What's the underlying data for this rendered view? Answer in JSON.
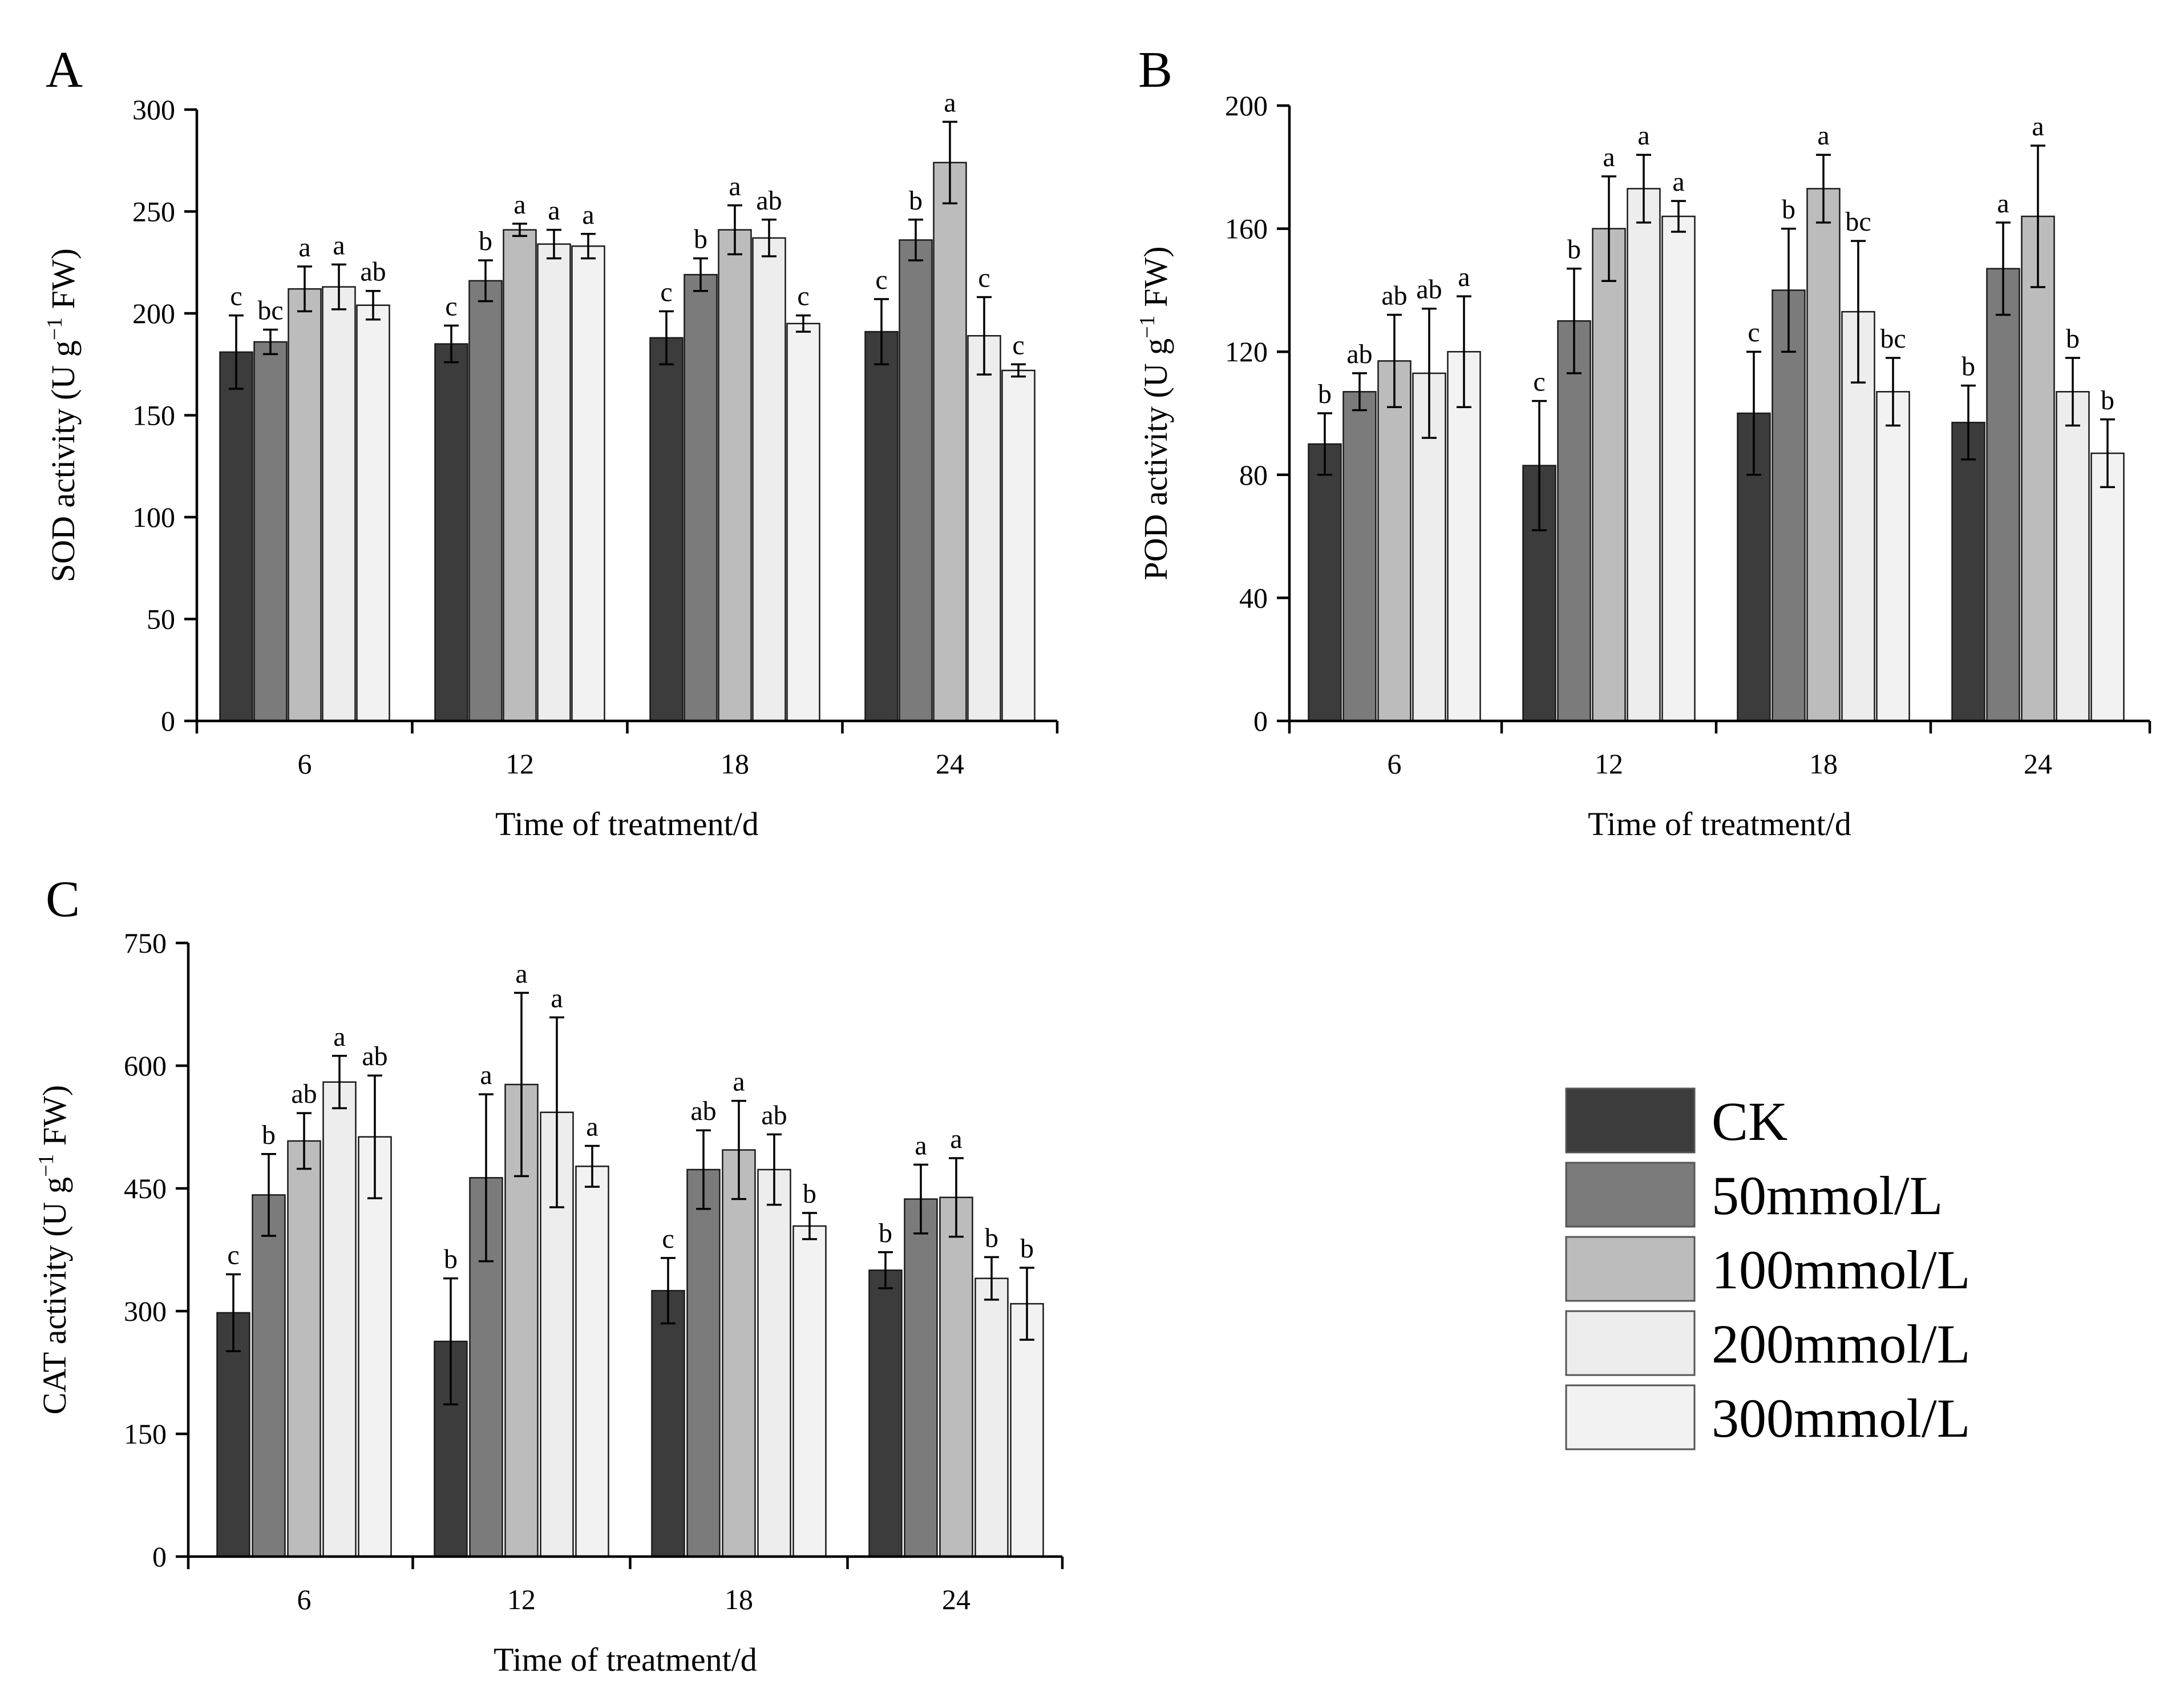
{
  "series_style": [
    {
      "name": "CK",
      "color": "#3c3c3c"
    },
    {
      "name": "50mmol/L",
      "color": "#7b7b7b"
    },
    {
      "name": "100mmol/L",
      "color": "#bcbcbc"
    },
    {
      "name": "200mmol/L",
      "color": "#ededed"
    },
    {
      "name": "300mmol/L",
      "color": "#f2f2f2"
    }
  ],
  "legend": {
    "items": [
      "CK",
      "50mmol/L",
      "100mmol/L",
      "200mmol/L",
      "300mmol/L"
    ]
  },
  "chart_data": [
    {
      "panel": "A",
      "type": "bar",
      "xlabel": "Time of treatment/d",
      "ylabel_main": "SOD activity (U g",
      "ylabel_sup": "−1",
      "ylabel_tail": " FW)",
      "ylim": [
        0,
        300
      ],
      "yticks": [
        0,
        50,
        100,
        150,
        200,
        250,
        300
      ],
      "categories": [
        "6",
        "12",
        "18",
        "24"
      ],
      "series": [
        {
          "name": "CK",
          "values": [
            181,
            185,
            188,
            191
          ],
          "errors": [
            18,
            9,
            13,
            16
          ],
          "letters": [
            "c",
            "c",
            "c",
            "c"
          ]
        },
        {
          "name": "50mmol/L",
          "values": [
            186,
            216,
            219,
            236
          ],
          "errors": [
            6,
            10,
            8,
            10
          ],
          "letters": [
            "bc",
            "b",
            "b",
            "b"
          ]
        },
        {
          "name": "100mmol/L",
          "values": [
            212,
            241,
            241,
            274
          ],
          "errors": [
            11,
            3,
            12,
            20
          ],
          "letters": [
            "a",
            "a",
            "a",
            "a"
          ]
        },
        {
          "name": "200mmol/L",
          "values": [
            213,
            234,
            237,
            189
          ],
          "errors": [
            11,
            7,
            9,
            19
          ],
          "letters": [
            "a",
            "a",
            "ab",
            "c"
          ]
        },
        {
          "name": "300mmol/L",
          "values": [
            204,
            233,
            195,
            172
          ],
          "errors": [
            7,
            6,
            4,
            3
          ],
          "letters": [
            "ab",
            "a",
            "c",
            "c"
          ]
        }
      ]
    },
    {
      "panel": "B",
      "type": "bar",
      "xlabel": "Time of treatment/d",
      "ylabel_main": "POD activity (U g",
      "ylabel_sup": "−1",
      "ylabel_tail": " FW)",
      "ylim": [
        0,
        200
      ],
      "yticks": [
        0,
        40,
        80,
        120,
        160,
        200
      ],
      "categories": [
        "6",
        "12",
        "18",
        "24"
      ],
      "series": [
        {
          "name": "CK",
          "values": [
            90,
            83,
            100,
            97
          ],
          "errors": [
            10,
            21,
            20,
            12
          ],
          "letters": [
            "b",
            "c",
            "c",
            "b"
          ]
        },
        {
          "name": "50mmol/L",
          "values": [
            107,
            130,
            140,
            147
          ],
          "errors": [
            6,
            17,
            20,
            15
          ],
          "letters": [
            "ab",
            "b",
            "b",
            "a"
          ]
        },
        {
          "name": "100mmol/L",
          "values": [
            117,
            160,
            173,
            164
          ],
          "errors": [
            15,
            17,
            11,
            23
          ],
          "letters": [
            "ab",
            "a",
            "a",
            "a"
          ]
        },
        {
          "name": "200mmol/L",
          "values": [
            113,
            173,
            133,
            107
          ],
          "errors": [
            21,
            11,
            23,
            11
          ],
          "letters": [
            "ab",
            "a",
            "bc",
            "b"
          ]
        },
        {
          "name": "300mmol/L",
          "values": [
            120,
            164,
            107,
            87
          ],
          "errors": [
            18,
            5,
            11,
            11
          ],
          "letters": [
            "a",
            "a",
            "bc",
            "b"
          ]
        }
      ]
    },
    {
      "panel": "C",
      "type": "bar",
      "xlabel": "Time of treatment/d",
      "ylabel_main": "CAT activity (U g",
      "ylabel_sup": "−1",
      "ylabel_tail": " FW)",
      "ylim": [
        0,
        750
      ],
      "yticks": [
        0,
        150,
        300,
        450,
        600,
        750
      ],
      "categories": [
        "6",
        "12",
        "18",
        "24"
      ],
      "series": [
        {
          "name": "CK",
          "values": [
            298,
            263,
            325,
            350
          ],
          "errors": [
            47,
            77,
            40,
            22
          ],
          "letters": [
            "c",
            "b",
            "c",
            "b"
          ]
        },
        {
          "name": "50mmol/L",
          "values": [
            442,
            463,
            473,
            437
          ],
          "errors": [
            50,
            102,
            48,
            42
          ],
          "letters": [
            "b",
            "a",
            "ab",
            "a"
          ]
        },
        {
          "name": "100mmol/L",
          "values": [
            508,
            577,
            497,
            439
          ],
          "errors": [
            34,
            112,
            60,
            48
          ],
          "letters": [
            "ab",
            "a",
            "a",
            "a"
          ]
        },
        {
          "name": "200mmol/L",
          "values": [
            580,
            543,
            473,
            340
          ],
          "errors": [
            32,
            116,
            43,
            26
          ],
          "letters": [
            "a",
            "a",
            "ab",
            "b"
          ]
        },
        {
          "name": "300mmol/L",
          "values": [
            513,
            477,
            404,
            309
          ],
          "errors": [
            75,
            25,
            16,
            44
          ],
          "letters": [
            "ab",
            "a",
            "b",
            "b"
          ]
        }
      ]
    }
  ]
}
